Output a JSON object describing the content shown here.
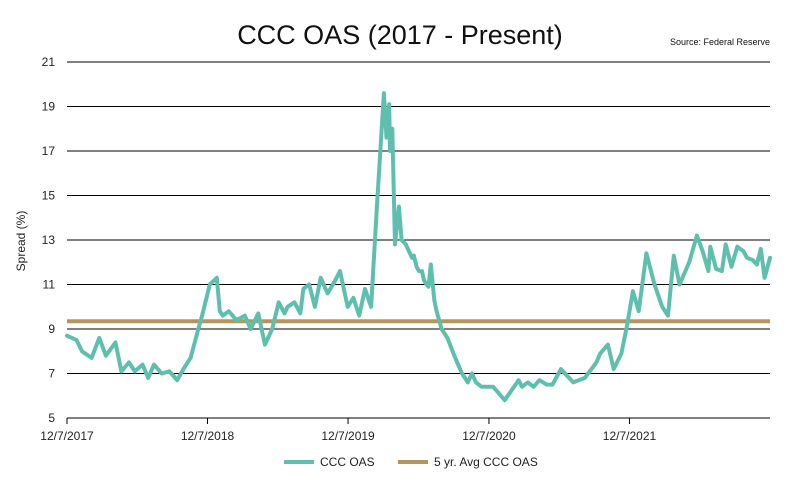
{
  "chart_data": {
    "type": "line",
    "title": "CCC OAS (2017 - Present)",
    "source": "Source: Federal Reserve",
    "ylabel": "Spread (%)",
    "xlabel": "",
    "ylim": [
      5,
      21
    ],
    "yticks": [
      5,
      7,
      9,
      11,
      13,
      15,
      17,
      19,
      21
    ],
    "xlim": [
      "2017-12-07",
      "2022-12-07"
    ],
    "xtick_labels": [
      "12/7/2017",
      "12/7/2018",
      "12/7/2019",
      "12/7/2020",
      "12/7/2021"
    ],
    "xtick_dates": [
      "2017-12-07",
      "2018-12-07",
      "2019-12-07",
      "2020-12-07",
      "2021-12-07"
    ],
    "grid": true,
    "legend_position": "bottom",
    "series": [
      {
        "name": "CCC OAS",
        "color": "#5FBFAE",
        "x": [
          "2017-12-07",
          "2018-01-01",
          "2018-01-15",
          "2018-02-09",
          "2018-03-01",
          "2018-03-18",
          "2018-04-12",
          "2018-04-27",
          "2018-05-17",
          "2018-06-01",
          "2018-06-21",
          "2018-07-06",
          "2018-07-21",
          "2018-08-10",
          "2018-08-30",
          "2018-09-19",
          "2018-10-09",
          "2018-10-24",
          "2018-11-13",
          "2018-11-23",
          "2018-12-13",
          "2018-12-31",
          "2019-01-08",
          "2019-01-16",
          "2019-01-31",
          "2019-02-20",
          "2019-03-14",
          "2019-03-29",
          "2019-04-18",
          "2019-05-05",
          "2019-05-24",
          "2019-06-10",
          "2019-06-25",
          "2019-07-03",
          "2019-07-21",
          "2019-08-05",
          "2019-08-13",
          "2019-08-28",
          "2019-09-12",
          "2019-09-27",
          "2019-10-15",
          "2019-11-01",
          "2019-11-16",
          "2019-12-06",
          "2019-12-21",
          "2020-01-05",
          "2020-01-20",
          "2020-02-05",
          "2020-02-20",
          "2020-03-09",
          "2020-03-16",
          "2020-03-23",
          "2020-03-25",
          "2020-03-31",
          "2020-04-07",
          "2020-04-17",
          "2020-04-24",
          "2020-05-05",
          "2020-05-21",
          "2020-05-26",
          "2020-06-02",
          "2020-06-08",
          "2020-06-16",
          "2020-06-21",
          "2020-06-28",
          "2020-07-03",
          "2020-07-09",
          "2020-07-18",
          "2020-07-24",
          "2020-08-06",
          "2020-08-21",
          "2020-09-08",
          "2020-09-28",
          "2020-10-13",
          "2020-10-24",
          "2020-11-03",
          "2020-11-18",
          "2020-12-03",
          "2020-12-18",
          "2021-01-02",
          "2021-01-17",
          "2021-02-02",
          "2021-02-22",
          "2021-03-03",
          "2021-03-18",
          "2021-04-02",
          "2021-04-17",
          "2021-05-06",
          "2021-05-21",
          "2021-06-12",
          "2021-07-14",
          "2021-08-13",
          "2021-09-12",
          "2021-09-22",
          "2021-10-12",
          "2021-10-27",
          "2021-11-16",
          "2021-12-01",
          "2021-12-16",
          "2021-12-31",
          "2022-01-20",
          "2022-02-10",
          "2022-03-02",
          "2022-03-17",
          "2022-04-01",
          "2022-04-16",
          "2022-05-11",
          "2022-05-31",
          "2022-06-15",
          "2022-06-30",
          "2022-07-05",
          "2022-07-20",
          "2022-08-04",
          "2022-08-14",
          "2022-08-29",
          "2022-09-13",
          "2022-09-29",
          "2022-10-08",
          "2022-10-23",
          "2022-11-03",
          "2022-11-13",
          "2022-11-23",
          "2022-12-07"
        ],
        "values": [
          8.7,
          8.5,
          8.0,
          7.7,
          8.6,
          7.8,
          8.4,
          7.1,
          7.5,
          7.1,
          7.4,
          6.8,
          7.4,
          7.0,
          7.1,
          6.7,
          7.3,
          7.7,
          9.0,
          9.6,
          11.0,
          11.3,
          9.8,
          9.6,
          9.8,
          9.4,
          9.6,
          9.0,
          9.7,
          8.3,
          9.0,
          10.2,
          9.7,
          10.0,
          10.2,
          9.7,
          10.8,
          11.0,
          10.0,
          11.3,
          10.6,
          11.1,
          11.6,
          10.0,
          10.4,
          9.6,
          10.8,
          10.0,
          14.5,
          19.6,
          17.6,
          19.1,
          17.0,
          18.0,
          12.8,
          14.5,
          13.0,
          12.8,
          12.2,
          12.3,
          11.8,
          11.6,
          11.6,
          11.2,
          11.0,
          10.9,
          11.9,
          10.3,
          9.8,
          9.0,
          8.6,
          7.8,
          7.0,
          6.6,
          7.0,
          6.6,
          6.4,
          6.4,
          6.4,
          6.1,
          5.8,
          6.2,
          6.7,
          6.4,
          6.6,
          6.4,
          6.7,
          6.5,
          6.5,
          7.2,
          6.6,
          6.8,
          7.5,
          7.9,
          8.3,
          7.2,
          7.9,
          9.2,
          10.7,
          9.8,
          12.4,
          11.0,
          10.0,
          9.6,
          12.3,
          11.0,
          12.0,
          13.2,
          12.5,
          11.6,
          12.7,
          11.7,
          11.6,
          12.8,
          11.8,
          12.7,
          12.5,
          12.2,
          12.1,
          11.9,
          12.6,
          11.3,
          12.2
        ]
      },
      {
        "name": "5 yr. Avg CCC OAS",
        "color": "#B6955C",
        "x": [
          "2017-12-07",
          "2022-12-07"
        ],
        "values": [
          9.35,
          9.35
        ]
      }
    ]
  }
}
